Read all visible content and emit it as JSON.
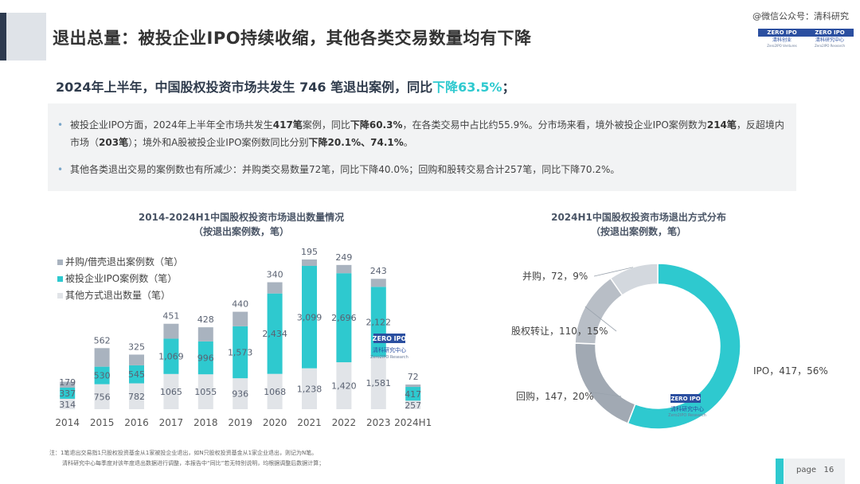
{
  "header": {
    "title": "退出总量：被投企业IPO持续收缩，其他各类交易数量均有下降",
    "wechat": "@微信公众号：清科研究",
    "logo1": {
      "top": "ZERO IPO",
      "cn": "清科创业",
      "en": "Zero2IPO Ventures"
    },
    "logo2": {
      "top": "ZERO IPO",
      "cn": "清科研究中心",
      "en": "Zero2IPO Research"
    }
  },
  "subtitle": {
    "main": "2024年上半年，中国股权投资市场共发生 746 笔退出案例，同比",
    "highlight": "下降63.5%",
    "tail": "；"
  },
  "bullets": [
    {
      "seg1": "被投企业IPO方面，2024年上半年全市场共发生",
      "b1": "417笔",
      "seg2": "案例，同比",
      "b2": "下降60.3%",
      "seg3": "，在各类交易中占比约55.9%。分市场来看，境外被投企业IPO案例数为",
      "b3": "214笔",
      "seg4": "，反超境内市场（",
      "b4": "203笔",
      "seg5": "）；境外和A股被投企业IPO案例数同比分别",
      "b5": "下降20.1%、74.1%",
      "seg6": "。"
    },
    {
      "text": "其他各类退出交易的案例数也有所减少：并购类交易数量72笔，同比下降40.0%；回购和股转交易合计257笔，同比下降70.2%。"
    }
  ],
  "colors": {
    "accent": "#2ec9cf",
    "ma": "#a9b3bf",
    "ipo": "#2ec9cf",
    "other": "#e1e4e8",
    "pie_equity": "#b8bec6",
    "pie_buyback": "#a1a9b3",
    "pie_ma": "#d3d8de"
  },
  "chart_data": [
    {
      "type": "bar",
      "title": "2014-2024H1中国股权投资市场退出数量情况",
      "subtitle": "（按退出案例数，笔）",
      "categories": [
        "2014",
        "2015",
        "2016",
        "2017",
        "2018",
        "2019",
        "2020",
        "2021",
        "2022",
        "2023",
        "2024H1"
      ],
      "series": [
        {
          "name": "其他方式退出数量（笔）",
          "key": "other",
          "values": [
            314,
            756,
            782,
            1065,
            1055,
            936,
            1068,
            1238,
            1420,
            1581,
            257
          ]
        },
        {
          "name": "被投企业IPO案例数（笔）",
          "key": "ipo",
          "values": [
            337,
            530,
            545,
            1069,
            996,
            1573,
            2434,
            3099,
            2696,
            2122,
            417
          ]
        },
        {
          "name": "并购/借壳退出案例数（笔）",
          "key": "ma",
          "values": [
            179,
            562,
            325,
            451,
            428,
            440,
            340,
            195,
            249,
            243,
            72
          ]
        }
      ],
      "value_labels": {
        "other": [
          "314",
          "756",
          "782",
          "1065",
          "1055",
          "936",
          "1068",
          "1,238",
          "1,420",
          "1,581",
          "257"
        ],
        "ipo": [
          "337",
          "530",
          "545",
          "1,069",
          "996",
          "1,573",
          "2,434",
          "3,099",
          "2,696",
          "2,122",
          "417"
        ],
        "ma": [
          "179",
          "562",
          "325",
          "451",
          "428",
          "440",
          "340",
          "195",
          "249",
          "243",
          "72"
        ]
      },
      "stacked": true,
      "legend": "top-left"
    },
    {
      "type": "pie",
      "title": "2024H1中国股权投资市场退出方式分布",
      "subtitle": "（按退出案例数，笔）",
      "donut": true,
      "slices": [
        {
          "label": "IPO，417，56%",
          "value": 417,
          "pct": 56,
          "color_key": "ipo"
        },
        {
          "label": "回购，147，20%",
          "value": 147,
          "pct": 20,
          "color_key": "pie_buyback"
        },
        {
          "label": "股权转让，110，15%",
          "value": 110,
          "pct": 15,
          "color_key": "pie_equity"
        },
        {
          "label": "并购，72，9%",
          "value": 72,
          "pct": 9,
          "color_key": "pie_ma"
        }
      ]
    }
  ],
  "watermark": {
    "top": "ZERO IPO",
    "cn": "清科研究中心",
    "en": "Zero2IPO Research"
  },
  "notes": [
    "注：1笔退出交易指1只股权投资基金从1家被投企业退出，如N只股权投资基金从1家企业退出，则记为N笔。",
    "清科研究中心每季度对该年度退出数据进行调整，本报告中“同比”若无特别说明，均根据调整后数据计算；"
  ],
  "page": {
    "label": "page",
    "number": "16"
  }
}
